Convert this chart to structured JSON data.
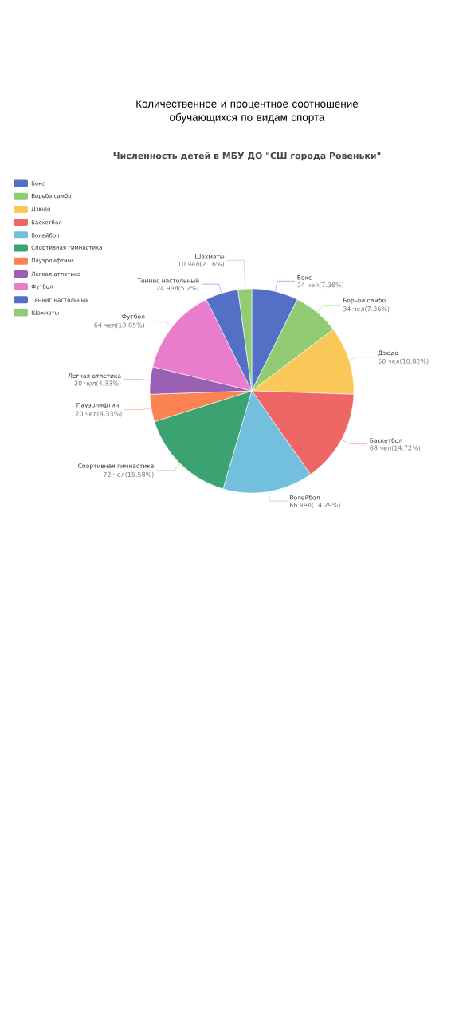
{
  "chart_data": {
    "type": "pie",
    "title": "Количественное и процентное соотношение обучающихся по видам спорта",
    "subtitle": "Численность детей в МБУ ДО \"СШ города Ровеньки\"",
    "categories": [
      "Бокс",
      "Борьба самбо",
      "Дзюдо",
      "Баскетбол",
      "Волейбол",
      "Спортивная гимнастика",
      "Пауэрлифтинг",
      "Легкая атлетика",
      "Футбол",
      "Теннис настольный",
      "Шахматы"
    ],
    "values": [
      34,
      34,
      50,
      68,
      66,
      72,
      20,
      20,
      64,
      24,
      10
    ],
    "value_labels": [
      "34 чел(7.36%)",
      "34 чел(7.36%)",
      "50 чел(10.82%)",
      "68 чел(14.72%)",
      "66 чел(14.29%)",
      "72 чел(15.58%)",
      "20 чел(4.33%)",
      "20 чел(4.33%)",
      "64 чел(13.85%)",
      "24 чел(5.2%)",
      "10 чел(2.16%)"
    ],
    "colors": [
      "#5470c6",
      "#91cc75",
      "#fac858",
      "#ee6666",
      "#73c0de",
      "#3ba272",
      "#fc8452",
      "#9a60b4",
      "#ea7ccc",
      "#5470c6",
      "#91cc75"
    ],
    "legend": "top left"
  }
}
